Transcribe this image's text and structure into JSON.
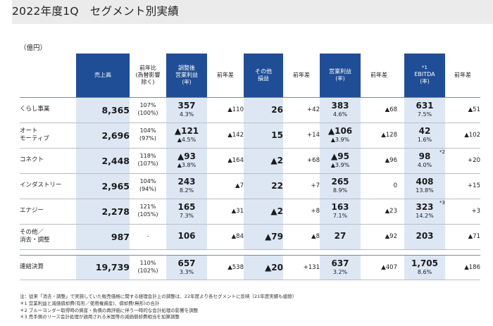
{
  "title": "2022年度1Q　セグメント別実績",
  "unit": "（億円）",
  "headers": {
    "sales": "売上高",
    "yoy_ratio": "前年比\n(為替影響\n除く)",
    "adj_op": "調整後\n営業利益",
    "adj_op_rate": "(率)",
    "diff1": "前年差",
    "other": "その他\n損益",
    "diff2": "前年差",
    "op": "営業利益",
    "op_rate": "(率)",
    "diff3": "前年差",
    "ebitda_mark": "*1",
    "ebitda": "EBITDA",
    "ebitda_rate": "(率)",
    "diff4": "前年差"
  },
  "rows": [
    {
      "name": "くらし事業",
      "sales": "8,365",
      "yoy": "107%",
      "yoy_fx": "(100%)",
      "adj": "357",
      "adj_rate": "4.3%",
      "adj_diff": "▲110",
      "other": "26",
      "other_diff": "+42",
      "op": "383",
      "op_rate": "4.6%",
      "op_diff": "▲68",
      "ebitda": "631",
      "ebitda_rate": "7.5%",
      "ebitda_mark": "",
      "ebitda_diff": "▲51"
    },
    {
      "name": "オート\nモーティブ",
      "sales": "2,696",
      "yoy": "104%",
      "yoy_fx": "(97%)",
      "adj": "▲121",
      "adj_rate": "▲4.5%",
      "adj_diff": "▲142",
      "other": "15",
      "other_diff": "+14",
      "op": "▲106",
      "op_rate": "▲3.9%",
      "op_diff": "▲128",
      "ebitda": "42",
      "ebitda_rate": "1.6%",
      "ebitda_mark": "",
      "ebitda_diff": "▲102"
    },
    {
      "name": "コネクト",
      "sales": "2,448",
      "yoy": "118%",
      "yoy_fx": "(107%)",
      "adj": "▲93",
      "adj_rate": "▲3.8%",
      "adj_diff": "▲164",
      "other": "▲2",
      "other_diff": "+68",
      "op": "▲95",
      "op_rate": "▲3.9%",
      "op_diff": "▲96",
      "ebitda": "98",
      "ebitda_rate": "4.0%",
      "ebitda_mark": "*2",
      "ebitda_diff": "+20"
    },
    {
      "name": "インダストリー",
      "sales": "2,965",
      "yoy": "104%",
      "yoy_fx": "(94%)",
      "adj": "243",
      "adj_rate": "8.2%",
      "adj_diff": "▲7",
      "other": "22",
      "other_diff": "+7",
      "op": "265",
      "op_rate": "8.9%",
      "op_diff": "0",
      "ebitda": "408",
      "ebitda_rate": "13.8%",
      "ebitda_mark": "",
      "ebitda_diff": "+15"
    },
    {
      "name": "エナジー",
      "sales": "2,278",
      "yoy": "121%",
      "yoy_fx": "(105%)",
      "adj": "165",
      "adj_rate": "7.3%",
      "adj_diff": "▲31",
      "other": "▲2",
      "other_diff": "+8",
      "op": "163",
      "op_rate": "7.1%",
      "op_diff": "▲23",
      "ebitda": "323",
      "ebitda_rate": "14.2%",
      "ebitda_mark": "*3",
      "ebitda_diff": "+3"
    },
    {
      "name": "その他／\n消去・調整",
      "sales": "987",
      "yoy": "-",
      "yoy_fx": "",
      "adj": "106",
      "adj_rate": "",
      "adj_diff": "▲84",
      "other": "▲79",
      "other_diff": "▲8",
      "op": "27",
      "op_rate": "",
      "op_diff": "▲92",
      "ebitda": "203",
      "ebitda_rate": "",
      "ebitda_mark": "",
      "ebitda_diff": "▲71"
    }
  ],
  "total": {
    "name": "連結決算",
    "sales": "19,739",
    "yoy": "110%",
    "yoy_fx": "(102%)",
    "adj": "657",
    "adj_rate": "3.3%",
    "adj_diff": "▲538",
    "other": "▲20",
    "other_diff": "+131",
    "op": "637",
    "op_rate": "3.2%",
    "op_diff": "▲407",
    "ebitda": "1,705",
    "ebitda_rate": "8.6%",
    "ebitda_mark": "",
    "ebitda_diff": "▲186"
  },
  "notes": [
    "注：従来「消去・調整」で実施していた販売価格に関する経理会計上の調整は、22年度より各セグメントに反映（21年度実績も組替）",
    "＊1 営業利益と減価償却費(有形／使用権資産)、償却費(無形)の合計",
    "＊2 ブルーヨンダー取得時の資産・負債の再評価に伴う一時的な会計処理の影響を調整",
    "＊3 売手側のリース会計処理が適用される米国等の減価償却費相当を加算調整"
  ],
  "colors": {
    "header_blue": "#1f4e96",
    "shade": "#dde7f4"
  }
}
